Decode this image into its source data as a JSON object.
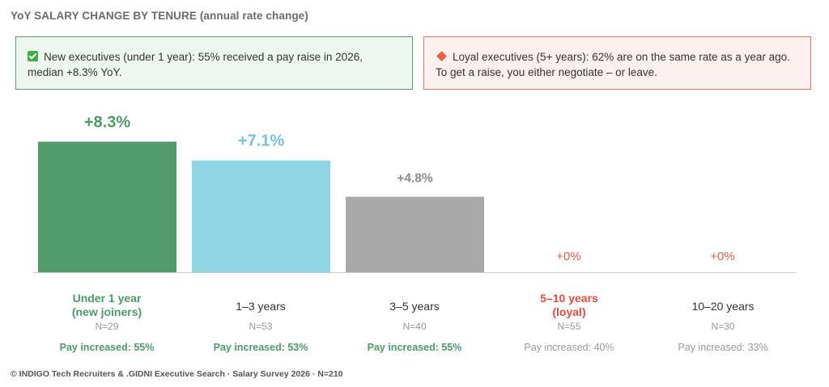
{
  "title": "YoY SALARY CHANGE BY TENURE (annual rate change)",
  "callouts": {
    "green_text": "New executives (under 1 year): 55% received a pay raise in 2026, median +8.3% YoY.",
    "red_text": "Loyal executives (5+ years): 62% are on the same rate as a year ago. To get a raise, you either negotiate – or leave."
  },
  "colors": {
    "green": "#529b6b",
    "light_blue": "#8fd5e3",
    "gray": "#a9a9a9",
    "red": "#e8594a",
    "value_green": "#4e9a67",
    "value_blue": "#72c5d8",
    "value_gray": "#8c8c8c",
    "value_red": "#e8594a"
  },
  "chart_data": {
    "type": "bar",
    "title": "YoY SALARY CHANGE BY TENURE (annual rate change)",
    "categories": [
      "Under 1 year (new joiners)",
      "1–3 years",
      "3–5 years",
      "5–10 years (loyal)",
      "10–20 years"
    ],
    "values": [
      8.3,
      7.1,
      4.8,
      0,
      0
    ],
    "value_labels": [
      "+8.3%",
      "+7.1%",
      "+4.8%",
      "+0%",
      "+0%"
    ],
    "ylim": [
      0,
      9.5
    ],
    "grid": false,
    "legend": "none"
  },
  "categories": [
    {
      "line1": "Under 1 year",
      "line2": "(new joiners)",
      "n": "N=29",
      "pay": "Pay increased: 55%"
    },
    {
      "line1": "1–3 years",
      "line2": "",
      "n": "N=53",
      "pay": "Pay increased: 53%"
    },
    {
      "line1": "3–5 years",
      "line2": "",
      "n": "N=40",
      "pay": "Pay increased: 55%"
    },
    {
      "line1": "5–10 years",
      "line2": "(loyal)",
      "n": "N=55",
      "pay": "Pay increased: 40%"
    },
    {
      "line1": "10–20 years",
      "line2": "",
      "n": "N=30",
      "pay": "Pay increased: 33%"
    }
  ],
  "footer": "© INDIGO Tech Recruiters & .GIDNI Executive Search · Salary Survey 2026 · N=210"
}
